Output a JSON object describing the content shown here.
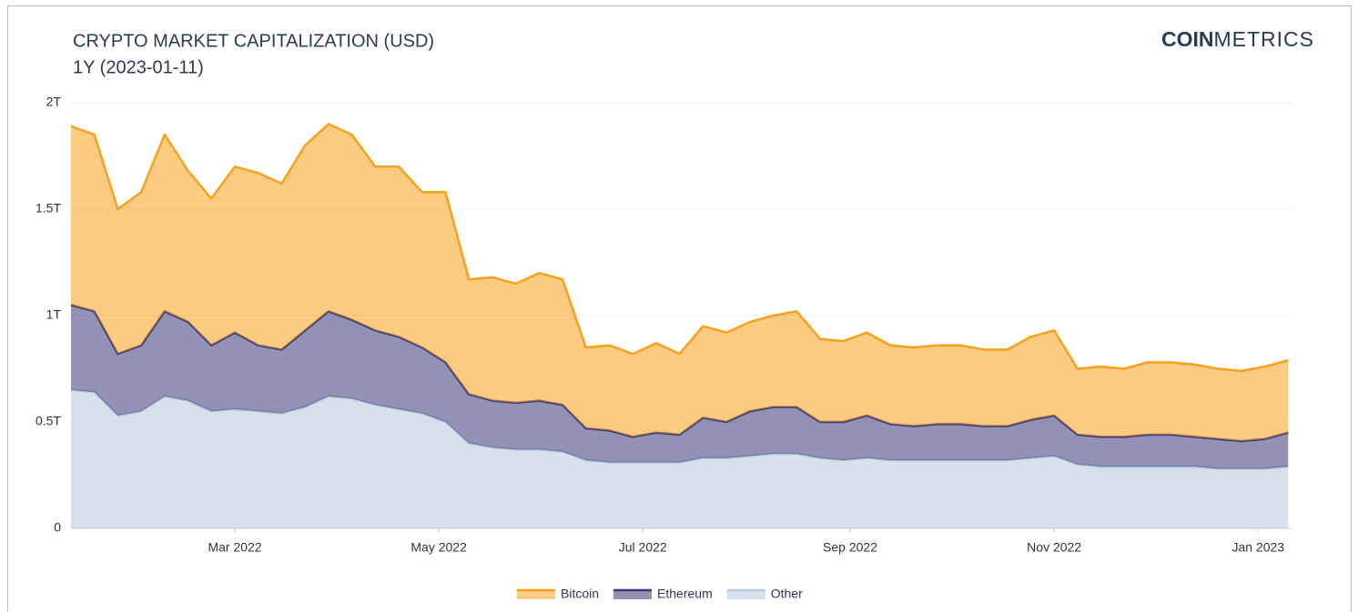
{
  "chart_data": {
    "type": "stacked_area",
    "title": "CRYPTO MARKET CAPITALIZATION (USD)",
    "subtitle": "1Y (2023-01-11)",
    "logo": [
      "COIN",
      "METRICS"
    ],
    "x": [
      0,
      7,
      14,
      21,
      28,
      35,
      42,
      49,
      56,
      63,
      70,
      77,
      84,
      91,
      98,
      105,
      112,
      119,
      126,
      133,
      140,
      147,
      154,
      161,
      168,
      175,
      182,
      189,
      196,
      203,
      210,
      217,
      224,
      231,
      238,
      245,
      252,
      259,
      266,
      273,
      280,
      287,
      294,
      301,
      308,
      315,
      322,
      329,
      336,
      343,
      350,
      357,
      364
    ],
    "xlim": [
      0,
      365
    ],
    "xticks": [
      {
        "value": 49,
        "label": "Mar 2022"
      },
      {
        "value": 110,
        "label": "May 2022"
      },
      {
        "value": 171,
        "label": "Jul 2022"
      },
      {
        "value": 233,
        "label": "Sep 2022"
      },
      {
        "value": 294,
        "label": "Nov 2022"
      },
      {
        "value": 355,
        "label": "Jan 2023"
      }
    ],
    "ylim": [
      0,
      2
    ],
    "yticks": [
      0,
      {
        "value": 0.5,
        "label": "0.5T"
      },
      {
        "value": 1,
        "label": "1T"
      },
      {
        "value": 1.5,
        "label": "1.5T"
      },
      {
        "value": 2,
        "label": "2T"
      }
    ],
    "grid": true,
    "legend": "bottom",
    "series": [
      {
        "name": "Bitcoin",
        "color": "#f7a01c",
        "values": [
          0.84,
          0.83,
          0.68,
          0.72,
          0.83,
          0.71,
          0.69,
          0.78,
          0.81,
          0.78,
          0.87,
          0.88,
          0.87,
          0.77,
          0.8,
          0.73,
          0.8,
          0.54,
          0.58,
          0.56,
          0.6,
          0.59,
          0.38,
          0.4,
          0.39,
          0.42,
          0.38,
          0.43,
          0.42,
          0.42,
          0.43,
          0.45,
          0.39,
          0.38,
          0.39,
          0.37,
          0.37,
          0.37,
          0.37,
          0.36,
          0.36,
          0.39,
          0.4,
          0.31,
          0.33,
          0.32,
          0.34,
          0.34,
          0.34,
          0.33,
          0.33,
          0.34,
          0.34
        ]
      },
      {
        "name": "Ethereum",
        "color": "#3b3878",
        "values": [
          0.4,
          0.38,
          0.29,
          0.31,
          0.4,
          0.37,
          0.31,
          0.36,
          0.31,
          0.3,
          0.36,
          0.4,
          0.37,
          0.35,
          0.34,
          0.31,
          0.28,
          0.23,
          0.22,
          0.22,
          0.23,
          0.22,
          0.15,
          0.15,
          0.12,
          0.14,
          0.13,
          0.19,
          0.17,
          0.21,
          0.22,
          0.22,
          0.17,
          0.18,
          0.2,
          0.17,
          0.16,
          0.17,
          0.17,
          0.16,
          0.16,
          0.18,
          0.19,
          0.14,
          0.14,
          0.14,
          0.15,
          0.15,
          0.14,
          0.14,
          0.13,
          0.14,
          0.16
        ]
      },
      {
        "name": "Other",
        "color": "#b4c8dc",
        "values": [
          0.65,
          0.64,
          0.53,
          0.55,
          0.62,
          0.6,
          0.55,
          0.56,
          0.55,
          0.54,
          0.57,
          0.62,
          0.61,
          0.58,
          0.56,
          0.54,
          0.5,
          0.4,
          0.38,
          0.37,
          0.37,
          0.36,
          0.32,
          0.31,
          0.31,
          0.31,
          0.31,
          0.33,
          0.33,
          0.34,
          0.35,
          0.35,
          0.33,
          0.32,
          0.33,
          0.32,
          0.32,
          0.32,
          0.32,
          0.32,
          0.32,
          0.33,
          0.34,
          0.3,
          0.29,
          0.29,
          0.29,
          0.29,
          0.29,
          0.28,
          0.28,
          0.28,
          0.29
        ]
      }
    ]
  }
}
